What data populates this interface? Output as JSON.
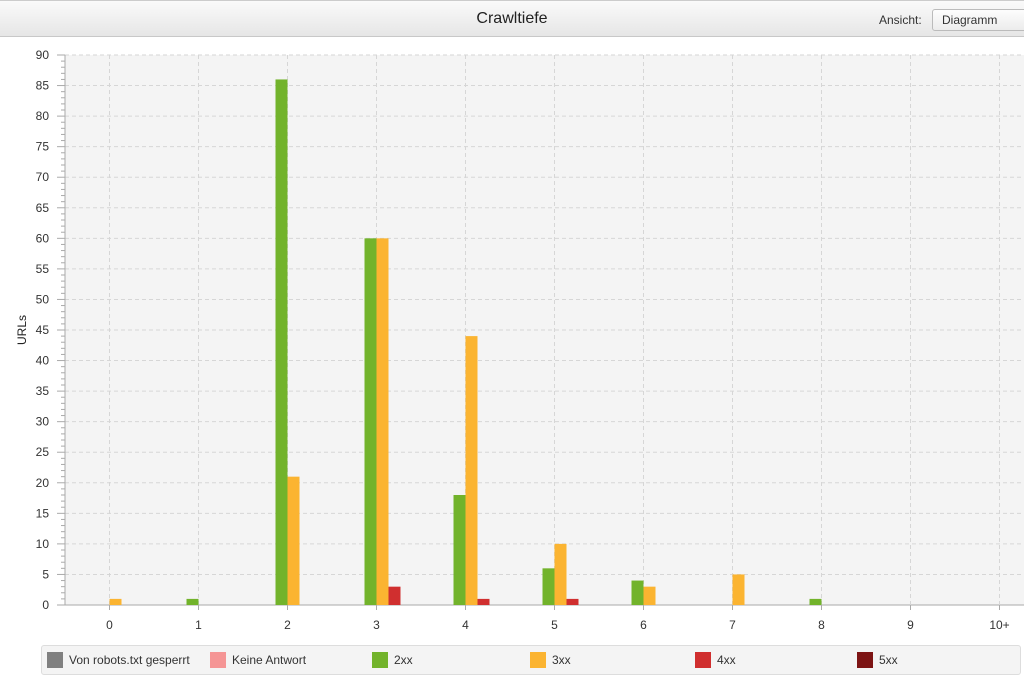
{
  "header": {
    "title": "Crawltiefe",
    "view_label": "Ansicht:",
    "view_value": "Diagramm"
  },
  "chart_data": {
    "type": "bar",
    "title": "",
    "xlabel": "",
    "ylabel": "URLs",
    "ylim": [
      0,
      90
    ],
    "yticks": [
      "0",
      "5",
      "10",
      "15",
      "20",
      "25",
      "30",
      "35",
      "40",
      "45",
      "50",
      "55",
      "60",
      "65",
      "70",
      "75",
      "80",
      "85",
      "90"
    ],
    "grid": true,
    "legend": "bottom",
    "categories": [
      "0",
      "1",
      "2",
      "3",
      "4",
      "5",
      "6",
      "7",
      "8",
      "9",
      "10+"
    ],
    "series": [
      {
        "name": "Von robots.txt gesperrt",
        "color": "#808080",
        "values": [
          0,
          0,
          0,
          0,
          0,
          0,
          0,
          0,
          0,
          0,
          0
        ]
      },
      {
        "name": "Keine Antwort",
        "color": "#f59595",
        "values": [
          0,
          0,
          0,
          0,
          0,
          0,
          0,
          0,
          0,
          0,
          0
        ]
      },
      {
        "name": "2xx",
        "color": "#72b32b",
        "values": [
          0,
          1,
          86,
          60,
          18,
          6,
          4,
          0,
          1,
          0,
          0
        ]
      },
      {
        "name": "3xx",
        "color": "#fbb431",
        "values": [
          1,
          0,
          21,
          60,
          44,
          10,
          3,
          5,
          0,
          0,
          0
        ]
      },
      {
        "name": "4xx",
        "color": "#d02f2f",
        "values": [
          0,
          0,
          0,
          3,
          1,
          1,
          0,
          0,
          0,
          0,
          0
        ]
      },
      {
        "name": "5xx",
        "color": "#7d1414",
        "values": [
          0,
          0,
          0,
          0,
          0,
          0,
          0,
          0,
          0,
          0,
          0
        ]
      }
    ]
  }
}
